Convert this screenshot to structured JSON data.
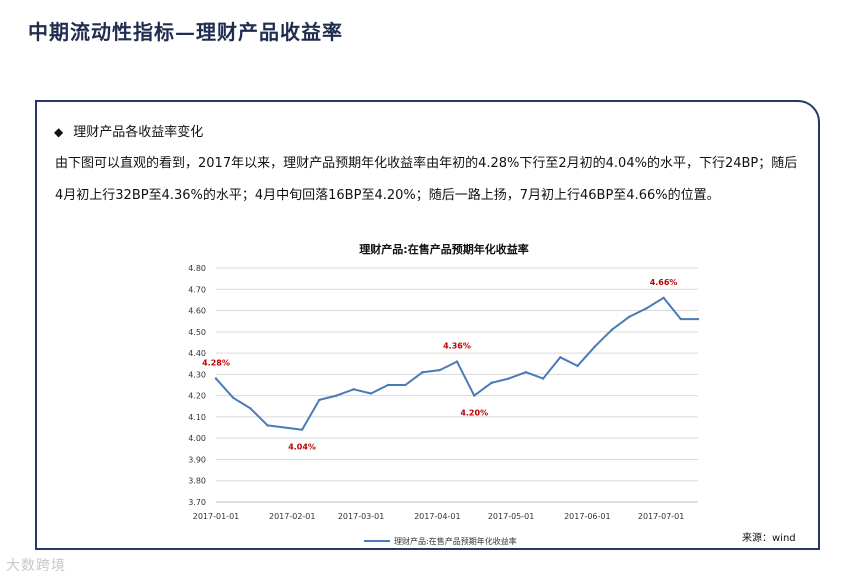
{
  "page": {
    "title": "中期流动性指标—理财产品收益率",
    "section_heading": "理财产品各收益率变化",
    "bullet": "◆",
    "summary": "由下图可以直观的看到，2017年以来，理财产品预期年化收益率由年初的4.28%下行至2月初的4.04%的水平，下行24BP；随后4月初上行32BP至4.36%的水平；4月中旬回落16BP至4.20%；随后一路上扬，7月初上行46BP至4.66%的位置。",
    "source": "来源：wind",
    "watermark": "大数跨境"
  },
  "colors": {
    "title": "#1f2d4f",
    "panel_border": "#24386b",
    "line": "#4a7bb7",
    "annotation": "#c00000",
    "grid": "#d9d9d9"
  },
  "chart_data": {
    "type": "line",
    "title": "理财产品:在售产品预期年化收益率",
    "xlabel": "",
    "ylabel": "",
    "ylim": [
      3.7,
      4.8
    ],
    "yticks": [
      "4.80",
      "4.70",
      "4.60",
      "4.50",
      "4.40",
      "4.30",
      "4.20",
      "4.10",
      "4.00",
      "3.90",
      "3.80",
      "3.70"
    ],
    "xticks": [
      "2017-01-01",
      "2017-02-01",
      "2017-03-01",
      "2017-04-01",
      "2017-05-01",
      "2017-06-01",
      "2017-07-01"
    ],
    "grid": "horizontal",
    "legend": "bottom-center",
    "series": [
      {
        "name": "理财产品:在售产品预期年化收益率",
        "x": [
          "2017-01-01",
          "2017-01-08",
          "2017-01-15",
          "2017-01-22",
          "2017-02-05",
          "2017-02-12",
          "2017-02-19",
          "2017-02-26",
          "2017-03-05",
          "2017-03-12",
          "2017-03-19",
          "2017-03-26",
          "2017-04-02",
          "2017-04-09",
          "2017-04-16",
          "2017-04-23",
          "2017-04-30",
          "2017-05-07",
          "2017-05-14",
          "2017-05-21",
          "2017-05-28",
          "2017-06-04",
          "2017-06-11",
          "2017-06-18",
          "2017-06-25",
          "2017-07-02",
          "2017-07-09",
          "2017-07-16"
        ],
        "values": [
          4.28,
          4.19,
          4.14,
          4.06,
          4.04,
          4.18,
          4.2,
          4.23,
          4.21,
          4.25,
          4.25,
          4.31,
          4.32,
          4.36,
          4.2,
          4.26,
          4.28,
          4.31,
          4.28,
          4.38,
          4.34,
          4.43,
          4.51,
          4.57,
          4.61,
          4.66,
          4.56,
          4.56
        ]
      }
    ],
    "annotations": [
      {
        "text": "4.28%",
        "x": "2017-01-01",
        "value": 4.28,
        "pos": "above"
      },
      {
        "text": "4.04%",
        "x": "2017-02-05",
        "value": 4.04,
        "pos": "below"
      },
      {
        "text": "4.36%",
        "x": "2017-04-09",
        "value": 4.36,
        "pos": "above"
      },
      {
        "text": "4.20%",
        "x": "2017-04-16",
        "value": 4.2,
        "pos": "below"
      },
      {
        "text": "4.66%",
        "x": "2017-07-02",
        "value": 4.66,
        "pos": "above"
      }
    ]
  }
}
